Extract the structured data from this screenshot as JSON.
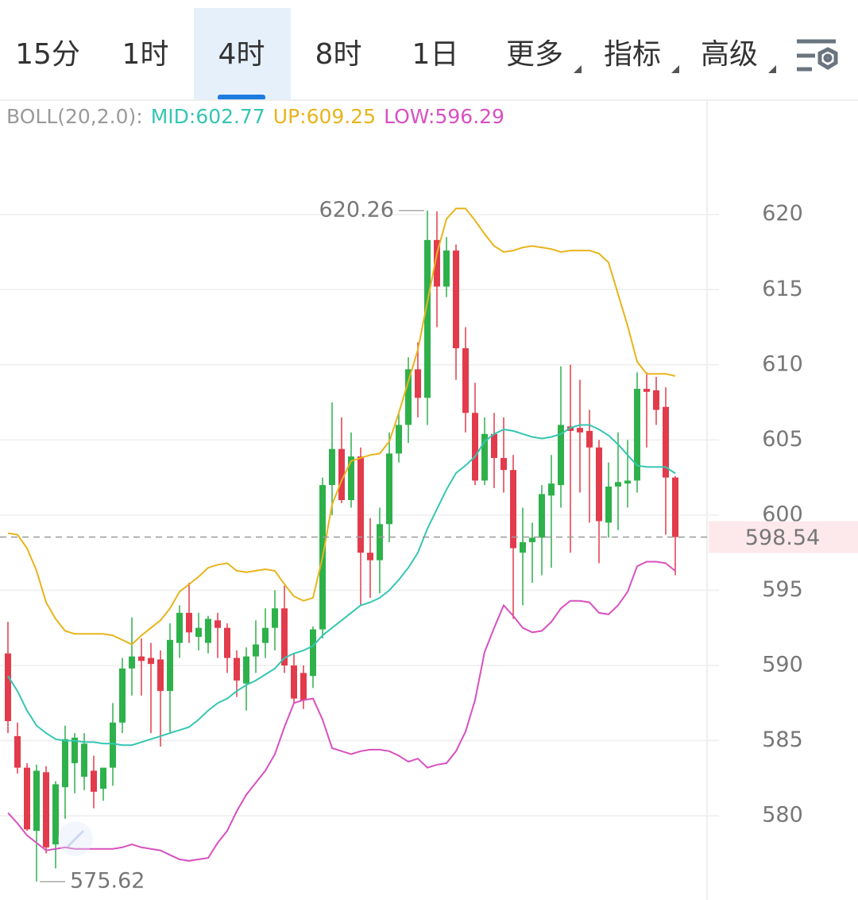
{
  "toolbar": {
    "tabs": [
      "15分",
      "1时",
      "4时",
      "8时",
      "1日",
      "更多",
      "指标",
      "高级"
    ],
    "active": 2
  },
  "chart_data": {
    "type": "candlestick",
    "indicator": "BOLL(20,2.0):",
    "up_color": "#2eb14b",
    "down_color": "#e23b4b",
    "open": [
      590.8,
      585.3,
      583.2,
      579.0,
      582.9,
      578.1,
      581.9,
      583.5,
      582.6,
      583.0,
      581.8,
      583.2,
      586.2,
      589.8,
      590.6,
      590.5,
      590.4,
      588.3,
      591.5,
      593.5,
      591.9,
      591.5,
      593.0,
      592.5,
      590.5,
      588.8,
      590.6,
      591.5,
      592.5,
      593.8,
      590.0,
      589.5,
      589.3,
      592.4,
      602.0,
      604.4,
      601.0,
      603.9,
      597.5,
      597.0,
      599.4,
      604.1,
      606.0,
      609.7,
      607.8,
      618.3,
      615.2,
      617.6,
      611.1,
      606.8,
      602.3,
      605.4,
      603.8,
      603.0,
      597.5,
      598.2,
      598.5,
      601.3,
      602.0,
      605.9,
      605.8,
      605.6,
      604.5,
      599.5,
      601.9,
      602.1,
      602.3,
      608.4,
      608.3,
      607.2,
      602.5
    ],
    "high": [
      592.9,
      586.2,
      583.5,
      583.4,
      583.3,
      582.3,
      586.0,
      585.5,
      585.5,
      584.0,
      583.2,
      587.5,
      590.5,
      593.2,
      591.8,
      591.5,
      591.0,
      592.8,
      594.0,
      595.5,
      593.5,
      593.3,
      593.5,
      592.8,
      591.0,
      591.2,
      593.0,
      593.8,
      595.0,
      595.3,
      590.8,
      590.0,
      592.6,
      602.5,
      607.5,
      606.5,
      605.5,
      604.5,
      599.8,
      600.5,
      605.5,
      606.8,
      610.5,
      611.5,
      620.26,
      620.2,
      618.5,
      618.0,
      612.5,
      608.8,
      606.5,
      606.8,
      606.5,
      604.0,
      600.5,
      599.5,
      602.0,
      604.0,
      609.9,
      610.0,
      609.0,
      607.0,
      605.0,
      603.5,
      605.5,
      605.0,
      609.5,
      609.5,
      609.2,
      608.5,
      602.6
    ],
    "low": [
      585.5,
      582.8,
      579.0,
      575.62,
      577.5,
      576.5,
      579.8,
      581.5,
      581.7,
      580.5,
      581.0,
      582.0,
      585.5,
      588.0,
      588.0,
      585.5,
      584.6,
      585.5,
      590.5,
      591.5,
      591.0,
      590.8,
      590.5,
      589.5,
      587.9,
      587.0,
      589.5,
      590.5,
      591.0,
      589.5,
      587.5,
      587.1,
      588.5,
      591.8,
      600.0,
      600.8,
      600.5,
      594.0,
      594.5,
      594.8,
      598.2,
      603.5,
      604.8,
      606.5,
      606.0,
      612.5,
      614.5,
      609.0,
      605.5,
      602.0,
      602.0,
      601.8,
      601.5,
      593.1,
      594.0,
      595.5,
      596.0,
      596.5,
      600.5,
      597.5,
      601.5,
      599.5,
      596.8,
      598.5,
      599.0,
      600.5,
      601.5,
      604.5,
      606.0,
      598.7,
      596.0
    ],
    "close": [
      586.3,
      583.2,
      579.1,
      583.0,
      577.9,
      582.1,
      585.1,
      585.2,
      584.8,
      581.6,
      583.2,
      586.2,
      589.8,
      590.6,
      590.3,
      590.1,
      588.3,
      591.7,
      593.5,
      592.2,
      592.5,
      593.1,
      592.5,
      590.5,
      589.0,
      590.6,
      591.4,
      592.5,
      593.8,
      590.0,
      587.8,
      587.7,
      592.4,
      602.0,
      604.4,
      601.0,
      603.9,
      597.5,
      597.0,
      599.4,
      604.1,
      606.0,
      609.7,
      607.8,
      618.3,
      615.2,
      617.6,
      611.1,
      606.8,
      602.3,
      605.4,
      603.8,
      603.0,
      597.8,
      598.2,
      598.5,
      601.4,
      602.1,
      606.0,
      605.6,
      605.5,
      604.5,
      599.6,
      601.9,
      602.2,
      602.3,
      608.4,
      608.2,
      607.0,
      602.5,
      598.54
    ],
    "series": [
      {
        "name": "MID:602.77",
        "color": "#35c6b2",
        "values": [
          589.3,
          588.3,
          587.0,
          586.0,
          585.5,
          585.1,
          585.0,
          585.0,
          584.9,
          584.9,
          584.8,
          584.8,
          584.7,
          584.7,
          584.9,
          585.1,
          585.3,
          585.5,
          585.7,
          585.9,
          586.4,
          587.0,
          587.5,
          587.8,
          588.3,
          588.7,
          589.0,
          589.4,
          589.8,
          590.5,
          590.8,
          591.0,
          591.3,
          592.0,
          592.5,
          593.0,
          593.5,
          594.0,
          594.2,
          594.5,
          595.0,
          595.7,
          596.5,
          597.5,
          599.1,
          600.4,
          601.7,
          602.8,
          603.3,
          603.9,
          604.9,
          605.4,
          605.7,
          605.6,
          605.4,
          605.2,
          605.1,
          605.2,
          605.4,
          605.8,
          606.0,
          606.0,
          605.7,
          605.3,
          604.7,
          604.0,
          603.3,
          603.2,
          603.2,
          603.2,
          602.77
        ]
      },
      {
        "name": "UP:609.25",
        "color": "#e8b41c",
        "values": [
          598.8,
          598.7,
          597.8,
          596.3,
          594.2,
          593.1,
          592.3,
          592.1,
          592.1,
          592.1,
          592.1,
          592.0,
          591.7,
          591.4,
          592.0,
          592.5,
          593.0,
          593.8,
          594.9,
          595.4,
          595.9,
          596.5,
          596.7,
          596.8,
          596.3,
          596.2,
          596.3,
          596.4,
          596.3,
          595.4,
          594.6,
          594.3,
          594.5,
          597.2,
          600.7,
          602.3,
          603.6,
          603.8,
          604.0,
          604.1,
          604.9,
          606.8,
          608.9,
          611.0,
          614.2,
          617.4,
          619.7,
          620.4,
          620.4,
          619.6,
          618.7,
          617.9,
          617.5,
          617.6,
          617.8,
          617.9,
          617.8,
          617.7,
          617.5,
          617.6,
          617.6,
          617.6,
          617.4,
          616.8,
          614.7,
          612.6,
          610.2,
          609.4,
          609.4,
          609.4,
          609.25
        ]
      },
      {
        "name": "LOW:596.29",
        "color": "#d850c0",
        "values": [
          580.2,
          579.5,
          578.7,
          578.2,
          577.7,
          577.8,
          577.9,
          577.8,
          577.8,
          577.8,
          577.8,
          577.8,
          577.9,
          578.1,
          577.9,
          577.8,
          577.7,
          577.4,
          577.1,
          577.0,
          577.1,
          577.2,
          578.2,
          579.0,
          580.3,
          581.4,
          582.2,
          583.0,
          584.1,
          585.9,
          587.5,
          587.7,
          587.8,
          586.4,
          584.5,
          584.3,
          584.1,
          584.3,
          584.4,
          584.4,
          584.3,
          584.0,
          583.6,
          583.8,
          583.2,
          583.4,
          583.5,
          584.3,
          585.6,
          587.7,
          590.9,
          592.5,
          594.0,
          593.3,
          592.5,
          592.2,
          592.3,
          592.9,
          593.8,
          594.3,
          594.3,
          594.2,
          593.5,
          593.4,
          594.0,
          594.9,
          596.6,
          596.9,
          596.9,
          596.8,
          596.29
        ]
      }
    ],
    "high_mark": 620.26,
    "low_mark": 575.62,
    "last_price": 598.54,
    "ylim": [
      574.4,
      627.6
    ],
    "yticks": [
      580,
      585,
      590,
      595,
      600,
      605,
      610,
      615,
      620
    ],
    "grid": true
  }
}
